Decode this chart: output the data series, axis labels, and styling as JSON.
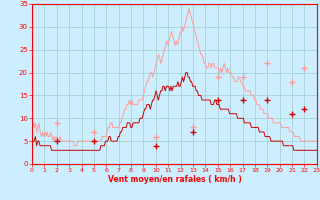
{
  "xlabel": "Vent moyen/en rafales ( km/h )",
  "background_color": "#cceeff",
  "grid_color": "#99cccc",
  "axis_color": "#ff0000",
  "tick_color": "#ff0000",
  "xlabel_color": "#ff0000",
  "ylim": [
    0,
    35
  ],
  "xlim": [
    0,
    23
  ],
  "yticks": [
    0,
    5,
    10,
    15,
    20,
    25,
    30,
    35
  ],
  "xticks": [
    0,
    1,
    2,
    3,
    4,
    5,
    6,
    7,
    8,
    9,
    10,
    11,
    12,
    13,
    14,
    15,
    16,
    17,
    18,
    19,
    20,
    21,
    22,
    23
  ],
  "rafales_color": "#ff9999",
  "moyen_color": "#cc0000",
  "rafales_data": [
    7,
    9,
    8,
    9,
    7,
    8,
    9,
    7,
    6,
    7,
    6,
    7,
    6,
    7,
    6,
    6,
    7,
    6,
    5,
    6,
    5,
    6,
    5,
    5,
    6,
    5,
    5,
    5,
    5,
    5,
    5,
    5,
    5,
    5,
    5,
    5,
    4,
    4,
    4,
    5,
    5,
    5,
    5,
    5,
    5,
    5,
    5,
    5,
    5,
    5,
    5,
    5,
    5,
    5,
    5,
    5,
    5,
    5,
    5,
    5,
    6,
    6,
    6,
    6,
    7,
    8,
    8,
    9,
    9,
    8,
    8,
    8,
    8,
    8,
    8,
    9,
    9,
    10,
    11,
    12,
    12,
    13,
    13,
    14,
    13,
    14,
    13,
    13,
    13,
    13,
    13,
    14,
    14,
    14,
    14,
    15,
    16,
    17,
    18,
    18,
    19,
    20,
    20,
    19,
    20,
    21,
    22,
    23,
    24,
    23,
    22,
    23,
    24,
    25,
    26,
    27,
    26,
    27,
    28,
    29,
    28,
    27,
    26,
    27,
    26,
    27,
    28,
    29,
    30,
    29,
    30,
    31,
    32,
    33,
    34,
    33,
    32,
    31,
    30,
    29,
    28,
    27,
    26,
    25,
    24,
    24,
    23,
    22,
    22,
    21,
    21,
    22,
    22,
    21,
    22,
    22,
    21,
    21,
    21,
    21,
    20,
    21,
    20,
    21,
    22,
    21,
    20,
    21,
    20,
    20,
    20,
    19,
    19,
    18,
    18,
    18,
    19,
    19,
    18,
    18,
    17,
    17,
    16,
    16,
    16,
    16,
    16,
    15,
    15,
    15,
    14,
    14,
    13,
    13,
    13,
    12,
    12,
    12,
    11,
    11,
    11,
    11,
    10,
    10,
    10,
    10,
    9,
    9,
    9,
    9,
    9,
    9,
    9,
    8,
    8,
    8,
    8,
    8,
    8,
    8,
    7,
    7,
    7,
    7,
    6,
    6,
    6,
    6,
    6,
    5,
    5,
    5,
    5,
    5,
    5,
    5,
    5,
    5,
    5,
    5,
    5,
    5,
    5,
    5
  ],
  "moyen_data": [
    4,
    5,
    5,
    6,
    4,
    5,
    5,
    4,
    4,
    4,
    4,
    4,
    4,
    4,
    4,
    4,
    4,
    3,
    3,
    3,
    3,
    3,
    3,
    3,
    3,
    3,
    3,
    3,
    3,
    3,
    3,
    3,
    3,
    3,
    3,
    3,
    3,
    3,
    3,
    3,
    3,
    3,
    3,
    3,
    3,
    3,
    3,
    3,
    3,
    3,
    3,
    3,
    3,
    3,
    3,
    3,
    3,
    3,
    3,
    3,
    4,
    4,
    4,
    4,
    5,
    5,
    5,
    6,
    6,
    5,
    5,
    5,
    5,
    5,
    5,
    6,
    6,
    7,
    7,
    8,
    8,
    8,
    8,
    9,
    9,
    9,
    8,
    8,
    9,
    9,
    9,
    9,
    9,
    9,
    10,
    10,
    10,
    11,
    12,
    12,
    13,
    13,
    13,
    12,
    13,
    14,
    14,
    15,
    16,
    15,
    14,
    15,
    16,
    16,
    17,
    17,
    16,
    17,
    17,
    17,
    16,
    17,
    16,
    17,
    17,
    17,
    17,
    18,
    17,
    17,
    18,
    19,
    18,
    19,
    20,
    20,
    19,
    19,
    18,
    18,
    17,
    17,
    17,
    16,
    16,
    15,
    15,
    15,
    14,
    14,
    14,
    14,
    14,
    14,
    14,
    14,
    13,
    13,
    13,
    14,
    14,
    13,
    13,
    13,
    12,
    12,
    12,
    12,
    12,
    12,
    12,
    12,
    11,
    11,
    11,
    11,
    11,
    11,
    11,
    10,
    10,
    10,
    10,
    10,
    10,
    9,
    9,
    9,
    9,
    9,
    9,
    8,
    8,
    8,
    8,
    8,
    8,
    8,
    7,
    7,
    7,
    7,
    7,
    6,
    6,
    6,
    6,
    6,
    5,
    5,
    5,
    5,
    5,
    5,
    5,
    5,
    5,
    5,
    5,
    4,
    4,
    4,
    4,
    4,
    4,
    4,
    4,
    4,
    3,
    3,
    3,
    3,
    3,
    3,
    3,
    3,
    3,
    3,
    3,
    3,
    3,
    3,
    3,
    3,
    3,
    3,
    3,
    3,
    3
  ],
  "rafales_markers": [
    [
      2,
      9
    ],
    [
      5,
      7
    ],
    [
      10,
      6
    ],
    [
      13,
      8
    ],
    [
      15,
      19
    ],
    [
      17,
      19
    ],
    [
      19,
      22
    ],
    [
      21,
      18
    ],
    [
      22,
      21
    ]
  ],
  "moyen_markers": [
    [
      2,
      5
    ],
    [
      5,
      5
    ],
    [
      10,
      4
    ],
    [
      13,
      7
    ],
    [
      15,
      14
    ],
    [
      17,
      14
    ],
    [
      19,
      14
    ],
    [
      21,
      11
    ],
    [
      22,
      12
    ]
  ]
}
